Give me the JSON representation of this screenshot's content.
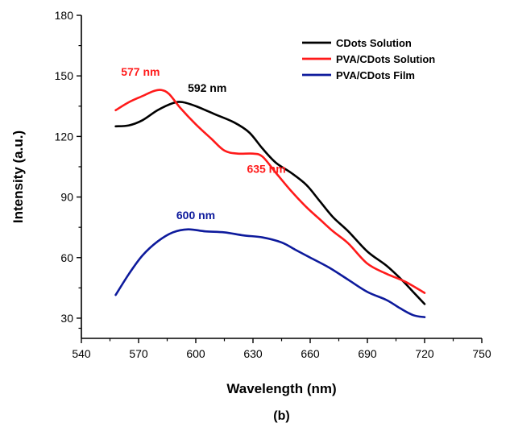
{
  "chart_data": {
    "type": "line",
    "xlabel": "Wavelength (nm)",
    "ylabel": "Intensity (a.u.)",
    "caption": "(b)",
    "xlim": [
      540,
      750
    ],
    "ylim": [
      20,
      180
    ],
    "xticks": [
      540,
      570,
      600,
      630,
      660,
      690,
      720,
      750
    ],
    "yticks": [
      30,
      60,
      90,
      120,
      150,
      180
    ],
    "grid": false,
    "legend_position": "top-right",
    "series": [
      {
        "name": "CDots Solution",
        "color": "#000000",
        "points": [
          [
            558,
            125
          ],
          [
            565,
            125.5
          ],
          [
            572,
            128
          ],
          [
            580,
            133
          ],
          [
            588,
            136.5
          ],
          [
            593,
            137
          ],
          [
            600,
            135
          ],
          [
            610,
            131
          ],
          [
            620,
            127
          ],
          [
            628,
            122
          ],
          [
            635,
            114
          ],
          [
            642,
            107
          ],
          [
            650,
            102
          ],
          [
            658,
            96
          ],
          [
            665,
            88
          ],
          [
            672,
            80
          ],
          [
            680,
            73
          ],
          [
            690,
            63
          ],
          [
            700,
            56
          ],
          [
            708,
            49
          ],
          [
            714,
            43
          ],
          [
            720,
            37
          ]
        ]
      },
      {
        "name": "PVA/CDots Solution",
        "color": "#ff1a1a",
        "points": [
          [
            558,
            133
          ],
          [
            565,
            137
          ],
          [
            572,
            140
          ],
          [
            578,
            142.5
          ],
          [
            582,
            143
          ],
          [
            586,
            141
          ],
          [
            592,
            134
          ],
          [
            600,
            126
          ],
          [
            608,
            119
          ],
          [
            615,
            113
          ],
          [
            622,
            111.5
          ],
          [
            630,
            111.5
          ],
          [
            635,
            110
          ],
          [
            642,
            102
          ],
          [
            650,
            93
          ],
          [
            658,
            85
          ],
          [
            665,
            79
          ],
          [
            672,
            73
          ],
          [
            680,
            67
          ],
          [
            690,
            57
          ],
          [
            700,
            52
          ],
          [
            710,
            48
          ],
          [
            720,
            42.5
          ]
        ]
      },
      {
        "name": "PVA/CDots Film",
        "color": "#0d1a9c",
        "points": [
          [
            558,
            41.5
          ],
          [
            565,
            52
          ],
          [
            572,
            61
          ],
          [
            580,
            68
          ],
          [
            588,
            72.5
          ],
          [
            596,
            74
          ],
          [
            605,
            73
          ],
          [
            615,
            72.5
          ],
          [
            625,
            71
          ],
          [
            635,
            70
          ],
          [
            645,
            67.5
          ],
          [
            652,
            64
          ],
          [
            660,
            60
          ],
          [
            670,
            55
          ],
          [
            680,
            49
          ],
          [
            690,
            43
          ],
          [
            700,
            39
          ],
          [
            707,
            35
          ],
          [
            714,
            31.5
          ],
          [
            720,
            30.5
          ]
        ]
      }
    ],
    "annotations": [
      {
        "text": "577 nm",
        "x": 571,
        "y": 150,
        "color": "#ff1a1a"
      },
      {
        "text": "592 nm",
        "x": 606,
        "y": 142,
        "color": "#000000"
      },
      {
        "text": "635 nm",
        "x": 637,
        "y": 102,
        "color": "#ff1a1a"
      },
      {
        "text": "600 nm",
        "x": 600,
        "y": 79,
        "color": "#0d1a9c"
      }
    ]
  }
}
